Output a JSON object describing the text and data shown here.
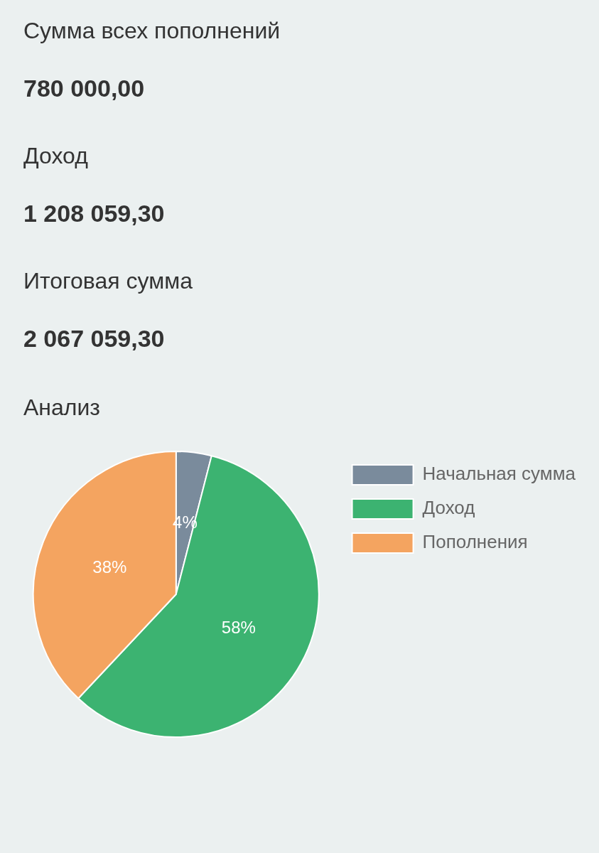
{
  "chart_data": [
    {
      "type": "other",
      "annotations": [
        "Сумма всех пополнений",
        "780 000,00",
        "Доход",
        "1 208 059,30",
        "Итоговая сумма",
        "2 067 059,30"
      ]
    },
    {
      "type": "pie",
      "title": "Анализ",
      "categories": [
        "Начальная сумма",
        "Доход",
        "Пополнения"
      ],
      "values": [
        4,
        58,
        38
      ],
      "colors": [
        "#7a8b9c",
        "#3cb371",
        "#f4a460"
      ],
      "value_labels": [
        "4%",
        "58%",
        "38%"
      ],
      "legend": "right"
    }
  ]
}
